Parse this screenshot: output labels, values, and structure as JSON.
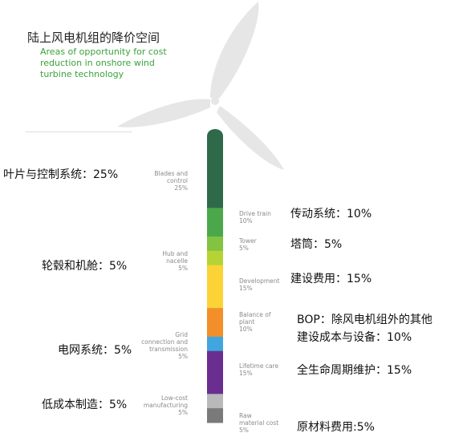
{
  "title": {
    "zh": "陆上风电机组的降价空间",
    "en": [
      "Areas of opportunity for cost",
      "reduction in onshore wind",
      "turbine technology"
    ]
  },
  "colors": {
    "blades": "#2e6a4a",
    "drive_train": "#4aa84a",
    "tower": "#82c341",
    "hub": "#b5d334",
    "development": "#fbd336",
    "bop": "#f38f2a",
    "grid": "#41a6e0",
    "lifetime": "#6a2e91",
    "manufacturing": "#b9b9b9",
    "raw": "#7a7a7a",
    "turbine": "#e6e6e6"
  },
  "segments": [
    {
      "id": "blades",
      "value": 25
    },
    {
      "id": "drive_train",
      "value": 10
    },
    {
      "id": "tower",
      "value": 5
    },
    {
      "id": "hub",
      "value": 5
    },
    {
      "id": "development",
      "value": 15
    },
    {
      "id": "bop",
      "value": 10
    },
    {
      "id": "grid",
      "value": 5
    },
    {
      "id": "lifetime",
      "value": 15
    },
    {
      "id": "manufacturing",
      "value": 5
    },
    {
      "id": "raw",
      "value": 5
    }
  ],
  "labels_en": {
    "blades": [
      "Blades and",
      "control"
    ],
    "blades_pct": "25%",
    "drive_train": [
      "Drive train"
    ],
    "drive_train_pct": "10%",
    "tower": [
      "Tower"
    ],
    "tower_pct": "5%",
    "hub": [
      "Hub and",
      "nacelle"
    ],
    "hub_pct": "5%",
    "development": [
      "Development"
    ],
    "development_pct": "15%",
    "bop": [
      "Balance of",
      "plant"
    ],
    "bop_pct": "10%",
    "grid": [
      "Grid",
      "connection and",
      "transmission"
    ],
    "grid_pct": "5%",
    "lifetime": [
      "Lifetime care"
    ],
    "lifetime_pct": "15%",
    "manufacturing": [
      "Low-cost",
      "manufacturing"
    ],
    "manufacturing_pct": "5%",
    "raw": [
      "Raw",
      "material cost"
    ],
    "raw_pct": "5%"
  },
  "labels_zh": {
    "blades": "叶片与控制系统：25%",
    "drive_train": "传动系统：10%",
    "tower": "塔筒：5%",
    "hub": "轮毂和机舱：5%",
    "development": "建设费用：15%",
    "bop_line1": "BOP：除风电机组外的其他",
    "bop_line2": "建设成本与设备：10%",
    "grid": "电网系统：5%",
    "lifetime": "全生命周期维护：15%",
    "manufacturing": "低成本制造：5%",
    "raw": "原材料费用:5%"
  }
}
